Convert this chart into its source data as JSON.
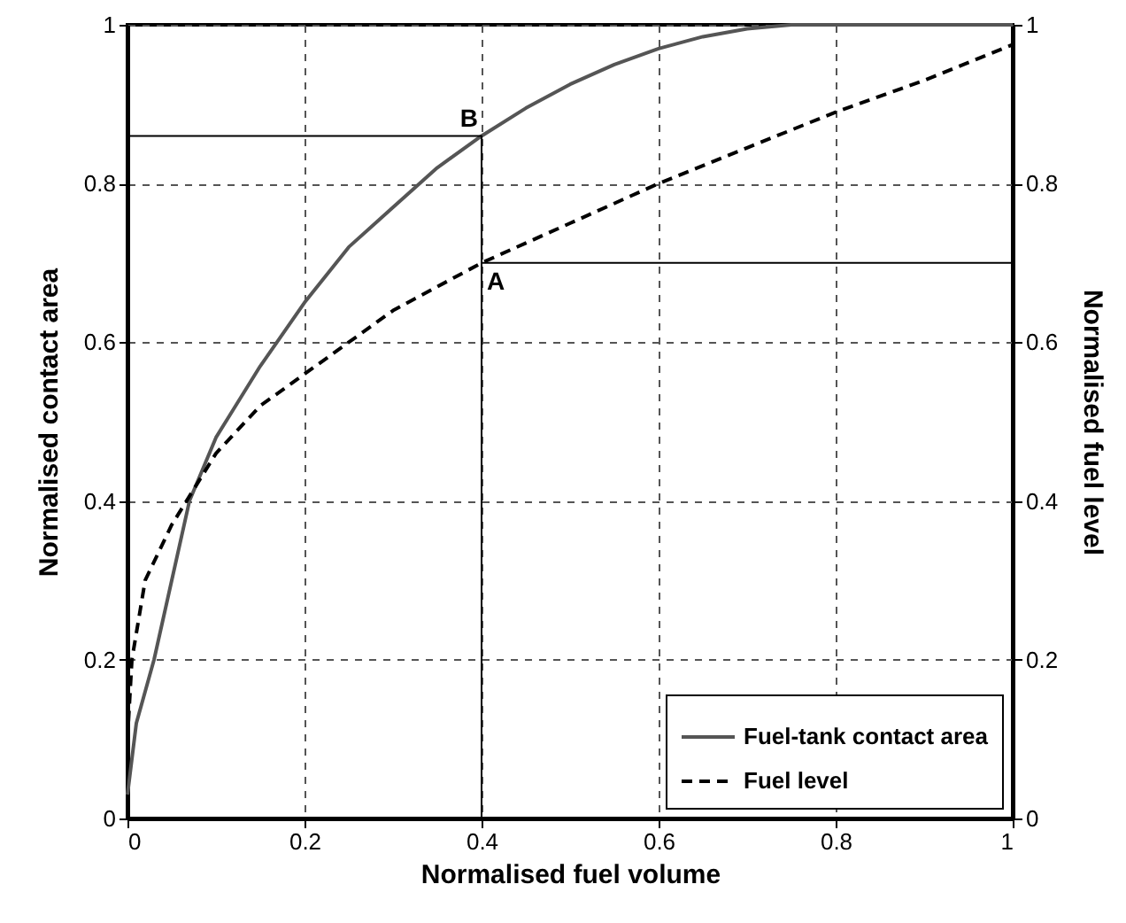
{
  "chart_data": {
    "type": "line",
    "xlabel": "Normalised fuel volume",
    "ylabel": "Normalised contact area",
    "y2label": "Normalised fuel level",
    "xlim": [
      0,
      1
    ],
    "xticks": [
      0,
      0.2,
      0.4,
      0.6,
      0.8,
      1
    ],
    "ylim": [
      0,
      1
    ],
    "yticks": [
      0,
      0.2,
      0.4,
      0.6,
      0.8,
      1
    ],
    "y2lim": [
      0,
      1
    ],
    "y2ticks": [
      0,
      0.2,
      0.4,
      0.6,
      0.8,
      1
    ],
    "grid": true,
    "legend": "bottom right",
    "series": [
      {
        "name": "Fuel-tank contact area",
        "color": "#555555",
        "line_style": "solid",
        "x": [
          0,
          0.01,
          0.03,
          0.05,
          0.07,
          0.1,
          0.15,
          0.2,
          0.25,
          0.3,
          0.35,
          0.4,
          0.45,
          0.5,
          0.55,
          0.6,
          0.65,
          0.7,
          0.75,
          0.8,
          1
        ],
        "values": [
          0.03,
          0.12,
          0.2,
          0.3,
          0.4,
          0.48,
          0.57,
          0.65,
          0.72,
          0.77,
          0.82,
          0.86,
          0.895,
          0.925,
          0.95,
          0.97,
          0.985,
          0.995,
          1,
          1,
          1
        ]
      },
      {
        "name": "Fuel level",
        "color": "#000000",
        "line_style": "dashed",
        "axis": "y2",
        "x": [
          0,
          0.005,
          0.02,
          0.05,
          0.1,
          0.15,
          0.2,
          0.3,
          0.4,
          0.5,
          0.6,
          0.7,
          0.8,
          0.9,
          1
        ],
        "values": [
          0.1,
          0.2,
          0.3,
          0.37,
          0.46,
          0.52,
          0.56,
          0.64,
          0.7,
          0.75,
          0.8,
          0.845,
          0.89,
          0.93,
          0.975
        ]
      },
      {
        "type": "line",
        "color": "#000000",
        "line_style": "solid",
        "x": [
          0,
          0.4,
          0.4
        ],
        "values": [
          0.86,
          0.86,
          0
        ]
      },
      {
        "type": "line",
        "color": "#000000",
        "line_style": "solid",
        "x": [
          0.4,
          1
        ],
        "values": [
          0.7,
          0.7
        ]
      }
    ],
    "annotations": [
      {
        "text": "B",
        "x": 0.4,
        "y": 0.86
      },
      {
        "text": "A",
        "x": 0.4,
        "y": 0.7
      }
    ]
  }
}
